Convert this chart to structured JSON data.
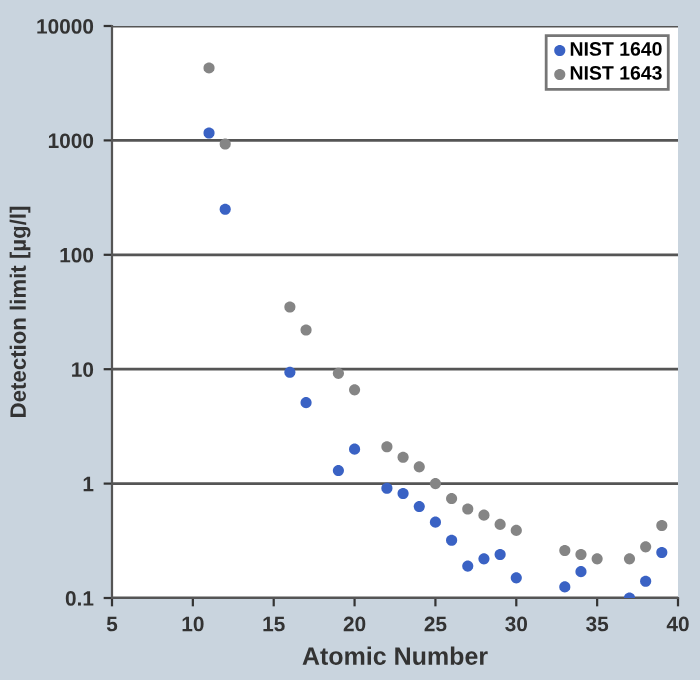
{
  "chart_data": {
    "type": "scatter",
    "xlabel": "Atomic Number",
    "ylabel": "Detection limit [µg/l]",
    "log": "y",
    "xlim": [
      5,
      40
    ],
    "xticks": [
      5,
      10,
      15,
      20,
      25,
      30,
      35,
      40
    ],
    "ylim": [
      0.1,
      10000
    ],
    "yticks": [
      {
        "value": 0.1,
        "label": "0.1"
      },
      1,
      10,
      100,
      1000,
      10000
    ],
    "grid": "y",
    "legend": "top right",
    "marker": "circle",
    "series": [
      {
        "name": "NIST 1640",
        "color": "#3a62c4",
        "x": [
          11,
          12,
          16,
          17,
          19,
          20,
          22,
          23,
          24,
          25,
          26,
          27,
          28,
          29,
          30,
          33,
          34,
          37,
          38,
          39
        ],
        "values": [
          1160,
          250,
          9.4,
          5.1,
          1.3,
          2.0,
          0.91,
          0.82,
          0.63,
          0.46,
          0.32,
          0.19,
          0.22,
          0.24,
          0.15,
          0.125,
          0.17,
          0.1,
          0.14,
          0.25
        ]
      },
      {
        "name": "NIST 1643",
        "color": "#858585",
        "x": [
          11,
          12,
          16,
          17,
          19,
          20,
          22,
          23,
          24,
          25,
          26,
          27,
          28,
          29,
          30,
          33,
          34,
          35,
          37,
          38,
          39
        ],
        "values": [
          4300,
          930,
          35,
          22,
          9.2,
          6.6,
          2.1,
          1.7,
          1.4,
          1.0,
          0.74,
          0.6,
          0.53,
          0.44,
          0.39,
          0.26,
          0.24,
          0.22,
          0.22,
          0.28,
          0.43
        ]
      }
    ]
  }
}
